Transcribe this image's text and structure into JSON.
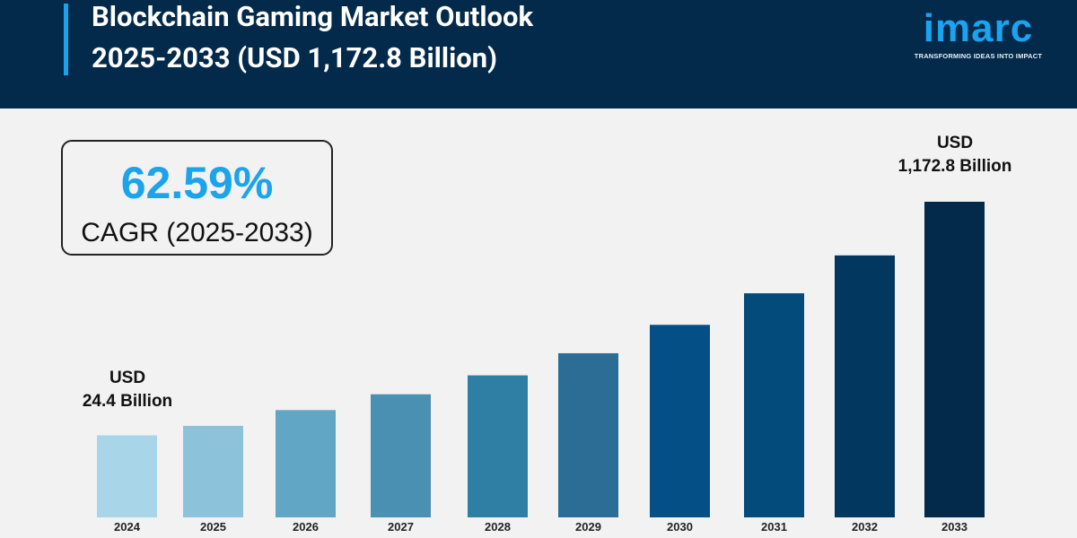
{
  "header": {
    "title_line1": "Blockchain Gaming Market Outlook",
    "title_line2": "2025-2033 (USD 1,172.8 Billion)",
    "logo_text": "imarc",
    "logo_tagline": "TRANSFORMING IDEAS INTO IMPACT",
    "accent_color": "#1ba3ec",
    "background_color": "#032a4a"
  },
  "cagr": {
    "value": "62.59%",
    "label": "CAGR (2025-2033)"
  },
  "chart_data": {
    "type": "bar",
    "categories": [
      "2024",
      "2025",
      "2026",
      "2027",
      "2028",
      "2029",
      "2030",
      "2031",
      "2032",
      "2033"
    ],
    "values": [
      24.4,
      null,
      null,
      null,
      null,
      null,
      null,
      null,
      null,
      1172.8
    ],
    "relative_heights": [
      0.26,
      0.29,
      0.34,
      0.39,
      0.45,
      0.52,
      0.61,
      0.71,
      0.83,
      1.0
    ],
    "colors": [
      "#a8d5e8",
      "#8cc3db",
      "#62a6c5",
      "#4a90b2",
      "#2e7fa3",
      "#2b6d95",
      "#044f86",
      "#034b7b",
      "#02375f",
      "#032a4b"
    ],
    "annotations": {
      "start": {
        "line1": "USD",
        "line2": "24.4 Billion"
      },
      "end": {
        "line1": "USD",
        "line2": "1,172.8 Billion"
      }
    },
    "unit": "USD Billion",
    "grid": false,
    "legend": "none"
  }
}
